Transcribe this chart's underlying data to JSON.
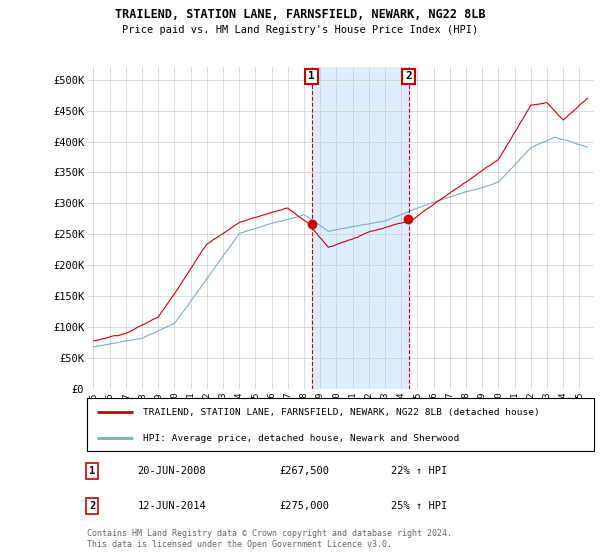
{
  "title1": "TRAILEND, STATION LANE, FARNSFIELD, NEWARK, NG22 8LB",
  "title2": "Price paid vs. HM Land Registry's House Price Index (HPI)",
  "legend_label1": "TRAILEND, STATION LANE, FARNSFIELD, NEWARK, NG22 8LB (detached house)",
  "legend_label2": "HPI: Average price, detached house, Newark and Sherwood",
  "transaction1_date": "20-JUN-2008",
  "transaction1_price": "£267,500",
  "transaction1_hpi": "22% ↑ HPI",
  "transaction2_date": "12-JUN-2014",
  "transaction2_price": "£275,000",
  "transaction2_hpi": "25% ↑ HPI",
  "transaction1_year": 2008.46,
  "transaction2_year": 2014.45,
  "t1_price": 267500,
  "t2_price": 275000,
  "red_color": "#cc0000",
  "blue_color": "#7aadcc",
  "shaded_color": "#ddeeff",
  "footer": "Contains HM Land Registry data © Crown copyright and database right 2024.\nThis data is licensed under the Open Government Licence v3.0.",
  "ylim": [
    0,
    520000
  ],
  "yticks": [
    0,
    50000,
    100000,
    150000,
    200000,
    250000,
    300000,
    350000,
    400000,
    450000,
    500000
  ],
  "ytick_labels": [
    "£0",
    "£50K",
    "£100K",
    "£150K",
    "£200K",
    "£250K",
    "£300K",
    "£350K",
    "£400K",
    "£450K",
    "£500K"
  ],
  "xmin": 1994.6,
  "xmax": 2025.9
}
